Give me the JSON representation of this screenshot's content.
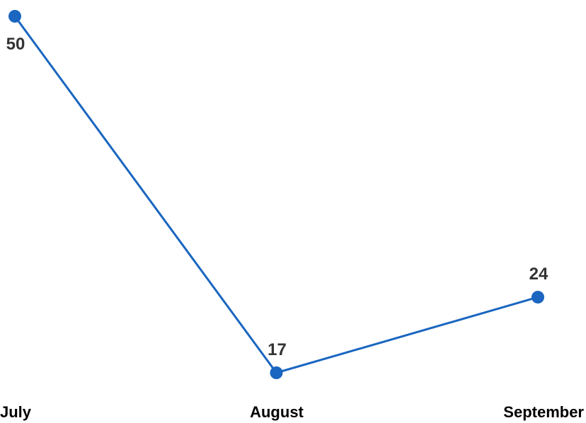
{
  "chart_data": {
    "type": "line",
    "categories": [
      "July",
      "August",
      "September"
    ],
    "series": [
      {
        "values": [
          50,
          17,
          24
        ]
      }
    ],
    "title": "",
    "xlabel": "",
    "ylabel": "",
    "ylim": [
      17,
      50
    ],
    "grid": false,
    "legend": "none",
    "data_labels": true
  },
  "colors": {
    "line": "#1a66c0",
    "marker": "#1a66c0",
    "label": "#333333",
    "tick": "#000000"
  }
}
